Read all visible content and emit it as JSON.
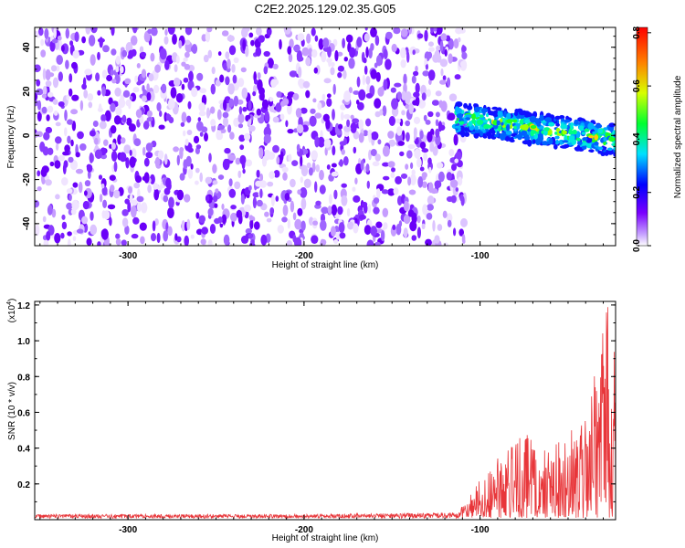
{
  "title": "C2E2.2025.129.02.35.G05",
  "chart_data": [
    {
      "type": "heatmap",
      "xlabel": "Height of straight line (km)",
      "ylabel": "Frequency (Hz)",
      "xlim": [
        -353,
        -23
      ],
      "ylim": [
        -50,
        49
      ],
      "xticks": [
        "-300",
        "-200",
        "-100"
      ],
      "yticks": [
        "40",
        "20",
        "0",
        "-20",
        "-40"
      ],
      "colorbar": {
        "label": "Normalized spectral amplitude",
        "range": [
          0.0,
          0.82
        ],
        "ticks": [
          "0.0",
          "0.2",
          "0.4",
          "0.6",
          "0.8"
        ],
        "colormap": "rainbow (white-violet-blue-cyan-green-yellow-red)"
      },
      "description_regions": [
        {
          "x_range": [
            -353,
            -110
          ],
          "y_range": [
            -50,
            49
          ],
          "level": "low (0.05-0.15)",
          "note": "dense speckled noise"
        },
        {
          "x_range": [
            -110,
            -23
          ],
          "y_range": [
            -10,
            10
          ],
          "level": "high (0.3-0.8)",
          "note": "signal band near 0 to 5 Hz"
        }
      ]
    },
    {
      "type": "line",
      "xlabel": "Height of straight line (km)",
      "ylabel": "SNR (10 * v/v)",
      "yscale_label": "(x10^4)",
      "xlim": [
        -353,
        -23
      ],
      "ylim": [
        0,
        1.22
      ],
      "xticks": [
        "-300",
        "-200",
        "-100"
      ],
      "yticks": [
        "0.2",
        "0.4",
        "0.6",
        "0.8",
        "1.0",
        "1.2"
      ],
      "series": [
        {
          "color": "#e8363a",
          "envelope": [
            {
              "x": -353,
              "y_max": 0.03
            },
            {
              "x": -200,
              "y_max": 0.03
            },
            {
              "x": -112,
              "y_max": 0.04
            },
            {
              "x": -100,
              "y_max": 0.22
            },
            {
              "x": -80,
              "y_max": 0.5
            },
            {
              "x": -60,
              "y_max": 0.4
            },
            {
              "x": -40,
              "y_max": 0.55
            },
            {
              "x": -28,
              "y_max": 1.22
            },
            {
              "x": -23,
              "y_max": 0.9
            }
          ]
        }
      ]
    }
  ]
}
